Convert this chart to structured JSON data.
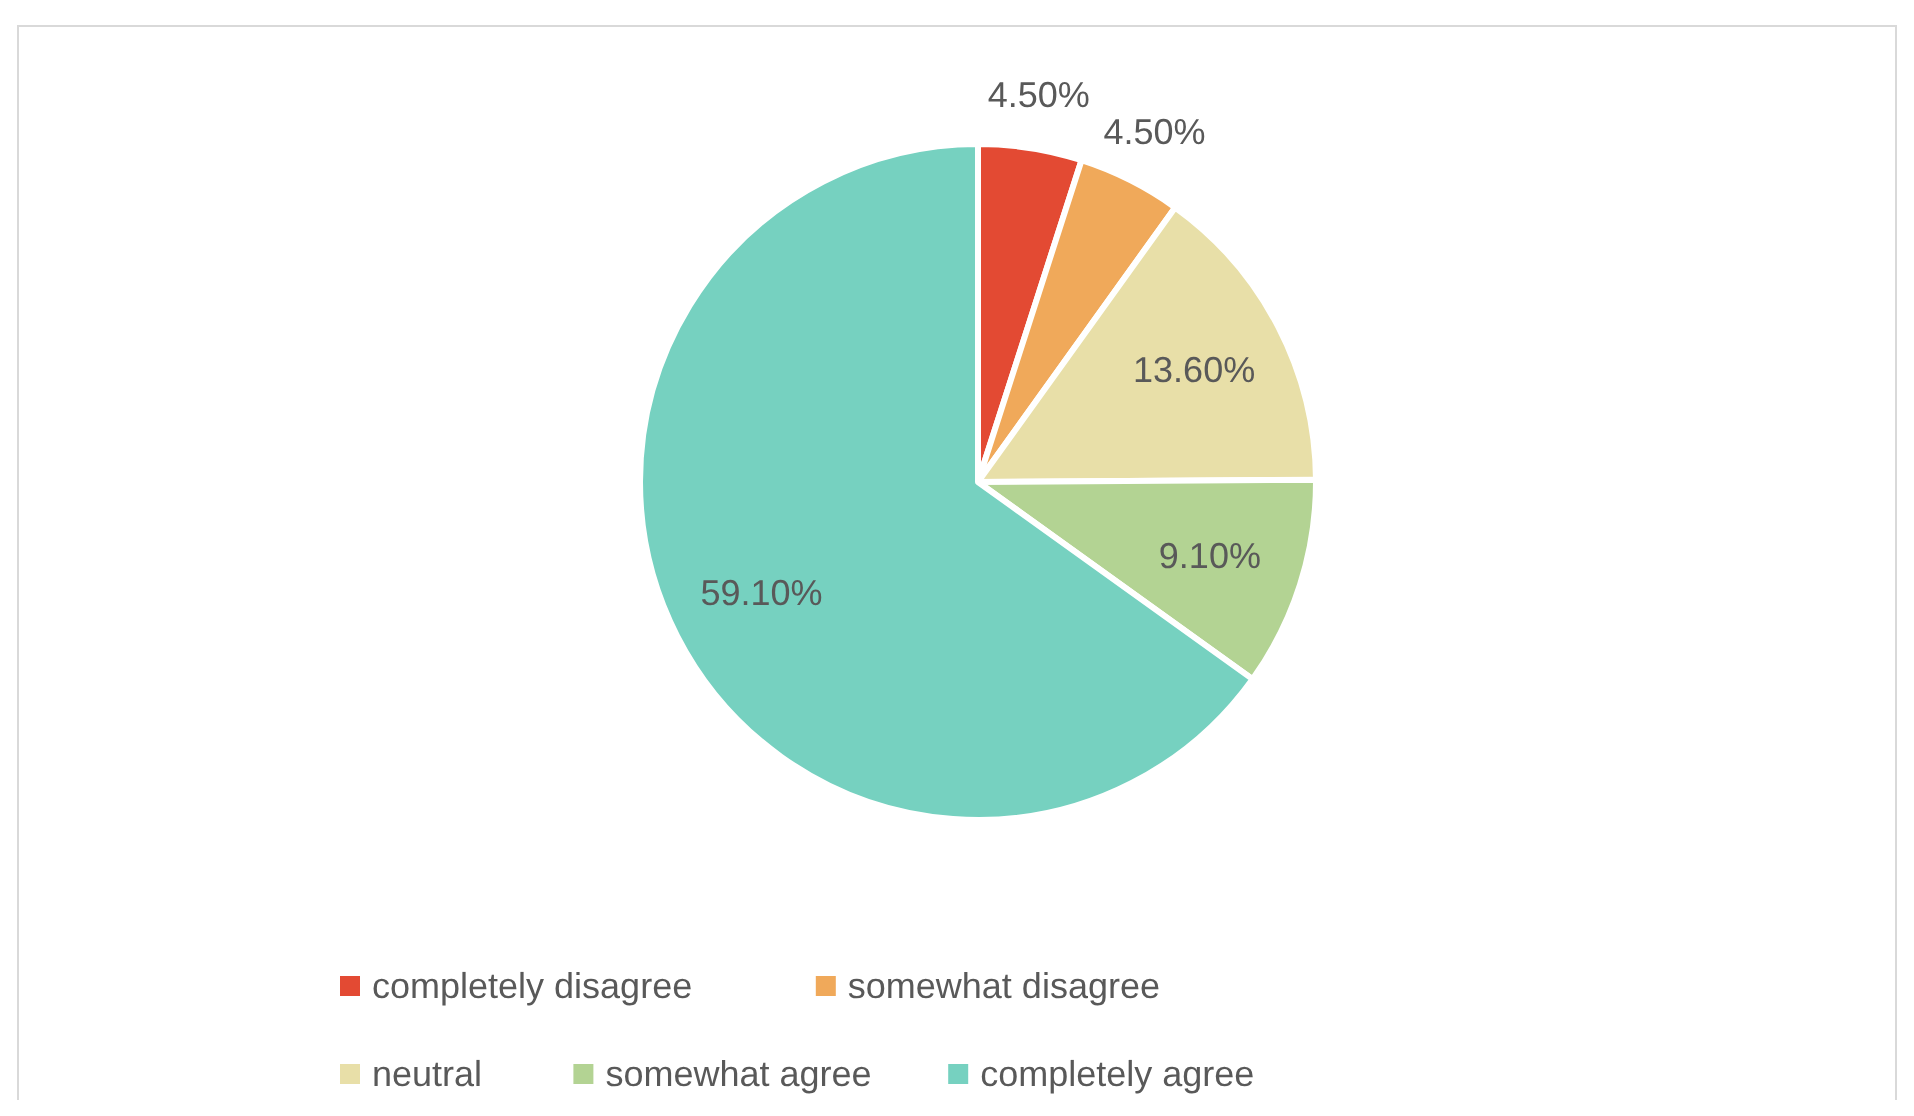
{
  "chart_data": {
    "type": "pie",
    "categories": [
      "completely disagree",
      "somewhat disagree",
      "neutral",
      "somewhat agree",
      "completely agree"
    ],
    "values": [
      4.5,
      4.5,
      13.6,
      9.1,
      59.1
    ],
    "colors": [
      "#e34a33",
      "#f0a95a",
      "#e8dfa8",
      "#b3d393",
      "#76d1c0"
    ],
    "value_labels": [
      "4.50%",
      "4.50%",
      "13.60%",
      "9.10%",
      "59.10%"
    ],
    "legend": "bottom"
  }
}
